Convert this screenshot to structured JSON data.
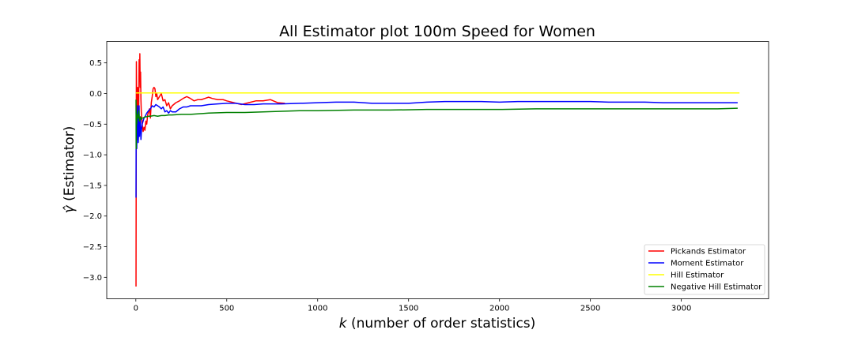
{
  "chart_data": {
    "type": "line",
    "title": "All Estimator plot 100m Speed for Women",
    "xlabel_italic": "k",
    "xlabel_rest": " (number of order statistics)",
    "ylabel_symbol": "γ̂",
    "ylabel_rest": " (Estimator)",
    "xlim": [
      -160,
      3480
    ],
    "ylim": [
      -3.35,
      0.85
    ],
    "xticks": [
      0,
      500,
      1000,
      1500,
      2000,
      2500,
      3000
    ],
    "yticks": [
      0.5,
      0.0,
      -0.5,
      -1.0,
      -1.5,
      -2.0,
      -2.5,
      -3.0
    ],
    "ytick_labels": [
      "0.5",
      "0.0",
      "−0.5",
      "−1.0",
      "−1.5",
      "−2.0",
      "−2.5",
      "−3.0"
    ],
    "grid": false,
    "legend_position": "lower-right",
    "series": [
      {
        "name": "Pickands Estimator",
        "color": "#ff0000",
        "points": [
          [
            1,
            -3.15
          ],
          [
            2,
            -1.2
          ],
          [
            3,
            0.52
          ],
          [
            5,
            -0.4
          ],
          [
            8,
            -0.75
          ],
          [
            10,
            0.1
          ],
          [
            12,
            -0.3
          ],
          [
            15,
            -0.5
          ],
          [
            18,
            0.55
          ],
          [
            20,
            0.2
          ],
          [
            22,
            0.65
          ],
          [
            24,
            0.1
          ],
          [
            26,
            0.35
          ],
          [
            28,
            -0.1
          ],
          [
            30,
            -0.3
          ],
          [
            35,
            -0.5
          ],
          [
            40,
            -0.62
          ],
          [
            45,
            -0.55
          ],
          [
            50,
            -0.6
          ],
          [
            55,
            -0.45
          ],
          [
            60,
            -0.5
          ],
          [
            65,
            -0.35
          ],
          [
            70,
            -0.3
          ],
          [
            75,
            -0.25
          ],
          [
            80,
            -0.4
          ],
          [
            85,
            -0.15
          ],
          [
            90,
            -0.05
          ],
          [
            95,
            0.08
          ],
          [
            100,
            0.1
          ],
          [
            105,
            0.08
          ],
          [
            110,
            -0.05
          ],
          [
            115,
            0.0
          ],
          [
            120,
            -0.1
          ],
          [
            130,
            -0.05
          ],
          [
            140,
            0.0
          ],
          [
            150,
            -0.12
          ],
          [
            160,
            -0.1
          ],
          [
            170,
            -0.2
          ],
          [
            180,
            -0.15
          ],
          [
            190,
            -0.25
          ],
          [
            200,
            -0.2
          ],
          [
            220,
            -0.15
          ],
          [
            240,
            -0.12
          ],
          [
            260,
            -0.08
          ],
          [
            280,
            -0.05
          ],
          [
            300,
            -0.08
          ],
          [
            320,
            -0.12
          ],
          [
            340,
            -0.1
          ],
          [
            360,
            -0.1
          ],
          [
            380,
            -0.08
          ],
          [
            400,
            -0.06
          ],
          [
            420,
            -0.08
          ],
          [
            450,
            -0.1
          ],
          [
            480,
            -0.1
          ],
          [
            500,
            -0.12
          ],
          [
            540,
            -0.15
          ],
          [
            580,
            -0.18
          ],
          [
            620,
            -0.15
          ],
          [
            660,
            -0.12
          ],
          [
            700,
            -0.12
          ],
          [
            740,
            -0.1
          ],
          [
            780,
            -0.15
          ],
          [
            820,
            -0.16
          ]
        ]
      },
      {
        "name": "Moment Estimator",
        "color": "#0000ff",
        "points": [
          [
            1,
            -1.7
          ],
          [
            2,
            -0.3
          ],
          [
            3,
            -0.6
          ],
          [
            5,
            -0.9
          ],
          [
            7,
            -0.5
          ],
          [
            9,
            -0.2
          ],
          [
            11,
            -0.4
          ],
          [
            13,
            -0.8
          ],
          [
            16,
            -0.6
          ],
          [
            18,
            -0.2
          ],
          [
            20,
            -0.7
          ],
          [
            22,
            -0.5
          ],
          [
            25,
            -0.4
          ],
          [
            28,
            -0.75
          ],
          [
            31,
            -0.6
          ],
          [
            35,
            -0.5
          ],
          [
            40,
            -0.45
          ],
          [
            45,
            -0.4
          ],
          [
            50,
            -0.38
          ],
          [
            60,
            -0.32
          ],
          [
            70,
            -0.28
          ],
          [
            80,
            -0.25
          ],
          [
            90,
            -0.2
          ],
          [
            100,
            -0.22
          ],
          [
            110,
            -0.18
          ],
          [
            120,
            -0.2
          ],
          [
            130,
            -0.22
          ],
          [
            140,
            -0.25
          ],
          [
            150,
            -0.22
          ],
          [
            160,
            -0.3
          ],
          [
            170,
            -0.28
          ],
          [
            180,
            -0.32
          ],
          [
            190,
            -0.28
          ],
          [
            200,
            -0.3
          ],
          [
            220,
            -0.3
          ],
          [
            240,
            -0.25
          ],
          [
            260,
            -0.22
          ],
          [
            280,
            -0.22
          ],
          [
            300,
            -0.2
          ],
          [
            330,
            -0.2
          ],
          [
            360,
            -0.2
          ],
          [
            400,
            -0.18
          ],
          [
            450,
            -0.17
          ],
          [
            500,
            -0.16
          ],
          [
            550,
            -0.16
          ],
          [
            600,
            -0.18
          ],
          [
            650,
            -0.18
          ],
          [
            700,
            -0.17
          ],
          [
            750,
            -0.17
          ],
          [
            800,
            -0.17
          ],
          [
            900,
            -0.16
          ],
          [
            1000,
            -0.15
          ],
          [
            1100,
            -0.14
          ],
          [
            1200,
            -0.14
          ],
          [
            1300,
            -0.16
          ],
          [
            1400,
            -0.16
          ],
          [
            1500,
            -0.16
          ],
          [
            1600,
            -0.14
          ],
          [
            1700,
            -0.13
          ],
          [
            1800,
            -0.13
          ],
          [
            1900,
            -0.13
          ],
          [
            2000,
            -0.14
          ],
          [
            2100,
            -0.13
          ],
          [
            2200,
            -0.13
          ],
          [
            2300,
            -0.13
          ],
          [
            2400,
            -0.13
          ],
          [
            2500,
            -0.13
          ],
          [
            2600,
            -0.14
          ],
          [
            2700,
            -0.14
          ],
          [
            2800,
            -0.14
          ],
          [
            2900,
            -0.15
          ],
          [
            3000,
            -0.15
          ],
          [
            3100,
            -0.15
          ],
          [
            3200,
            -0.15
          ],
          [
            3310,
            -0.15
          ]
        ]
      },
      {
        "name": "Hill Estimator",
        "color": "#ffff00",
        "points": [
          [
            0,
            0.01
          ],
          [
            200,
            0.01
          ],
          [
            600,
            0.01
          ],
          [
            1000,
            0.01
          ],
          [
            1500,
            0.01
          ],
          [
            2000,
            0.01
          ],
          [
            2500,
            0.01
          ],
          [
            3000,
            0.01
          ],
          [
            3320,
            0.01
          ]
        ]
      },
      {
        "name": "Negative Hill Estimator",
        "color": "#008000",
        "points": [
          [
            1,
            -0.1
          ],
          [
            2,
            -0.9
          ],
          [
            3,
            -0.3
          ],
          [
            5,
            -0.5
          ],
          [
            8,
            -0.35
          ],
          [
            12,
            -0.4
          ],
          [
            16,
            -0.28
          ],
          [
            20,
            -0.45
          ],
          [
            25,
            -0.38
          ],
          [
            30,
            -0.42
          ],
          [
            35,
            -0.4
          ],
          [
            40,
            -0.4
          ],
          [
            50,
            -0.38
          ],
          [
            60,
            -0.38
          ],
          [
            70,
            -0.37
          ],
          [
            80,
            -0.37
          ],
          [
            100,
            -0.36
          ],
          [
            120,
            -0.37
          ],
          [
            140,
            -0.36
          ],
          [
            160,
            -0.36
          ],
          [
            180,
            -0.35
          ],
          [
            200,
            -0.35
          ],
          [
            250,
            -0.34
          ],
          [
            300,
            -0.34
          ],
          [
            400,
            -0.32
          ],
          [
            500,
            -0.31
          ],
          [
            600,
            -0.31
          ],
          [
            700,
            -0.3
          ],
          [
            800,
            -0.29
          ],
          [
            900,
            -0.28
          ],
          [
            1000,
            -0.28
          ],
          [
            1200,
            -0.27
          ],
          [
            1400,
            -0.27
          ],
          [
            1600,
            -0.26
          ],
          [
            1800,
            -0.26
          ],
          [
            2000,
            -0.26
          ],
          [
            2200,
            -0.25
          ],
          [
            2400,
            -0.25
          ],
          [
            2600,
            -0.25
          ],
          [
            2800,
            -0.25
          ],
          [
            3000,
            -0.25
          ],
          [
            3200,
            -0.25
          ],
          [
            3310,
            -0.24
          ]
        ]
      }
    ]
  }
}
